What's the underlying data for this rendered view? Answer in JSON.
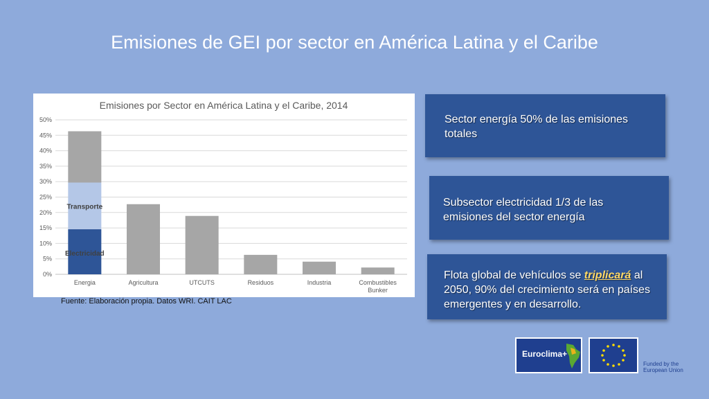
{
  "slide": {
    "title": "Emisiones de GEI por sector en América Latina y el Caribe",
    "source": "Fuente: Elaboración propia. Datos WRI. CAIT LAC"
  },
  "boxes": {
    "box1": "Sector energía 50% de las emisiones totales",
    "box2": "Subsector electricidad 1/3 de las emisiones del sector energía",
    "box3_pre": "Flota global de vehículos se ",
    "box3_emph": "triplicará",
    "box3_post": " al 2050, 90% del crecimiento será en países emergentes y en desarrollo."
  },
  "logos": {
    "euroclima": "Euroclima+",
    "funded": "Funded by the European Union"
  },
  "colors": {
    "background": "#8eaadb",
    "box": "#2e5597",
    "gray_bar": "#a6a6a6",
    "electricidad": "#2e5597",
    "transporte": "#b4c7e7",
    "emphasis": "#ffd966"
  },
  "chart_data": {
    "type": "bar",
    "title": "Emisiones por Sector en América Latina y el Caribe, 2014",
    "categories": [
      "Energia",
      "Agricultura",
      "UTCUTS",
      "Residuos",
      "Industria",
      "Combustibles Bunker"
    ],
    "category_lines": [
      [
        "Energia"
      ],
      [
        "Agricultura"
      ],
      [
        "UTCUTS"
      ],
      [
        "Residuos"
      ],
      [
        "Industria"
      ],
      [
        "Combustibles",
        "Bunker"
      ]
    ],
    "values": [
      46.3,
      22.7,
      18.9,
      6.3,
      4.1,
      2.2
    ],
    "energia_breakdown": [
      {
        "name": "Electricidad",
        "value": 14.6
      },
      {
        "name": "Transporte",
        "value": 15.1
      },
      {
        "name": "",
        "value": 16.6
      }
    ],
    "ylim": [
      0,
      50
    ],
    "yticks": [
      "0%",
      "5%",
      "10%",
      "15%",
      "20%",
      "25%",
      "30%",
      "35%",
      "40%",
      "45%",
      "50%"
    ],
    "grid": true,
    "xlabel": "",
    "ylabel": ""
  }
}
